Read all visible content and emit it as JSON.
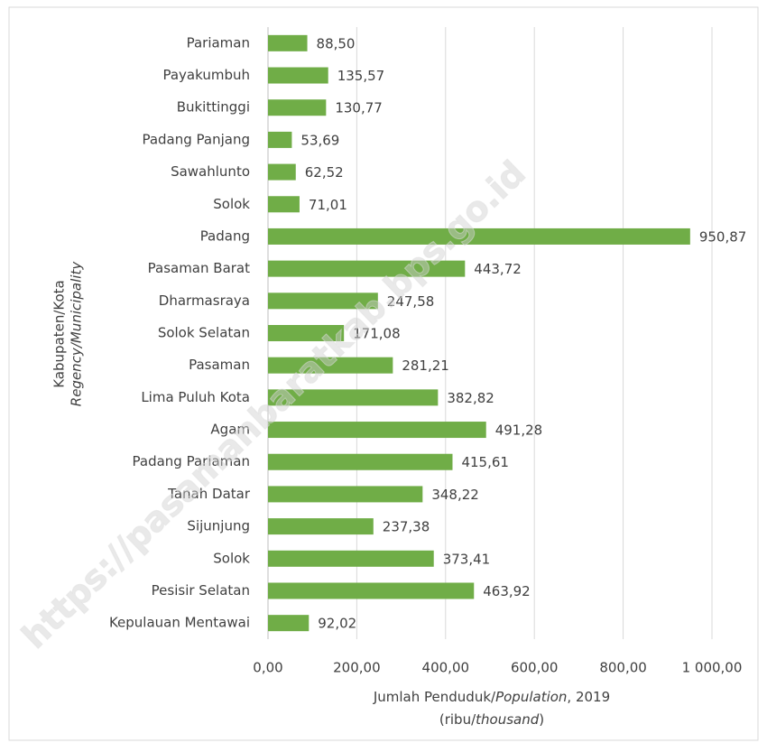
{
  "chart_data": {
    "type": "barh",
    "categories": [
      "Pariaman",
      "Payakumbuh",
      "Bukittinggi",
      "Padang Panjang",
      "Sawahlunto",
      "Solok",
      "Padang",
      "Pasaman Barat",
      "Dharmasraya",
      "Solok Selatan",
      "Pasaman",
      "Lima Puluh Kota",
      "Agam",
      "Padang Pariaman",
      "Tanah Datar",
      "Sijunjung",
      "Solok",
      "Pesisir Selatan",
      "Kepulauan Mentawai"
    ],
    "values": [
      88.5,
      135.57,
      130.77,
      53.69,
      62.52,
      71.01,
      950.87,
      443.72,
      247.58,
      171.08,
      281.21,
      382.82,
      491.28,
      415.61,
      348.22,
      237.38,
      373.41,
      463.92,
      92.02
    ],
    "value_labels": [
      "88,50",
      "135,57",
      "130,77",
      "53,69",
      "62,52",
      "71,01",
      "950,87",
      "443,72",
      "247,58",
      "171,08",
      "281,21",
      "382,82",
      "491,28",
      "415,61",
      "348,22",
      "237,38",
      "373,41",
      "463,92",
      "92,02"
    ],
    "color": "#70ad47",
    "xlim": [
      0,
      1000
    ],
    "xticks": [
      {
        "value": 0,
        "label": "0,00"
      },
      {
        "value": 200,
        "label": "200,00"
      },
      {
        "value": 400,
        "label": "400,00"
      },
      {
        "value": 600,
        "label": "600,00"
      },
      {
        "value": 800,
        "label": "800,00"
      },
      {
        "value": 1000,
        "label": "1 000,00"
      }
    ],
    "grid": true,
    "ylabel": [
      "Kabupaten/Kota",
      "Regency/Municipality"
    ],
    "xlabel": [
      "Jumlah Penduduk/",
      "Population",
      ", 2019"
    ],
    "xlabel2": [
      "(ribu/",
      "thousand",
      ")"
    ],
    "watermark": "https://pasamanbaratkab.bps.go.id"
  }
}
